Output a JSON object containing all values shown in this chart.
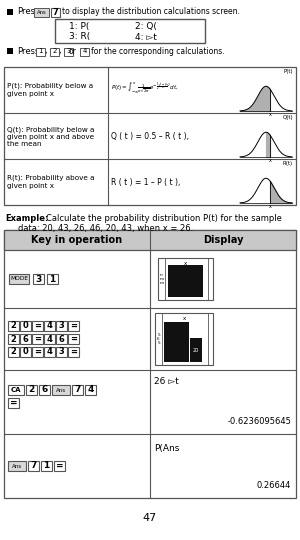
{
  "bg_color": "#ffffff",
  "text_color": "#000000",
  "page_num": "47",
  "menu_items_row1": [
    "1: P(",
    "2: Q("
  ],
  "menu_items_row2": [
    "3: R(",
    "4: ▻t"
  ],
  "pt_label": "P(t): Probability below a\ngiven point x",
  "pt_formula": "P(t)=\\int_{-\\infty}^{x} \\frac{1}{\\sigma\\sqrt{2\\pi}} e^{-\\frac{1}{2}(\\frac{t-\\mu}{\\sigma})^2} dt ,",
  "qt_label": "Q(t): Probability below a\ngiven point x and above\nthe mean",
  "qt_formula": "Q ( t ) = 0.5 – R ( t ),",
  "rt_label": "R(t): Probability above a\ngiven point x",
  "rt_formula": "R ( t ) = 1 – P ( t ),",
  "example_bold": "Example:",
  "example_rest": " Calculate the probability distribution P(t) for the sample",
  "example_line2": "data: 20, 43, 26, 46, 20, 43, when x = 26.",
  "table_header_left": "Key in operation",
  "table_header_right": "Display",
  "row3_right_line1": "26 ▻t",
  "row3_right_line2": "-0.6236095645",
  "row4_right_line1": "P(Ans",
  "row4_right_line2": "0.26644",
  "gray_header": "#c0c0c0",
  "border_color": "#555555",
  "key_bg": "#e8e8e8"
}
